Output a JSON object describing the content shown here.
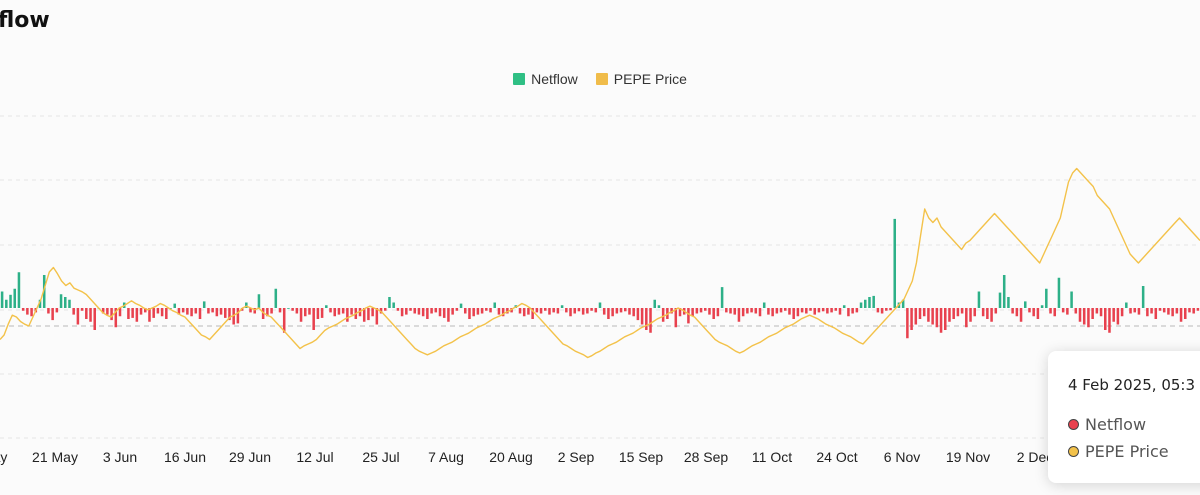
{
  "title": "flow",
  "colors": {
    "netflow_positive": "#2db088",
    "netflow_negative": "#e8414e",
    "price": "#f3c24a"
  },
  "legend": [
    {
      "label": "Netflow",
      "color": "#2fbf84"
    },
    {
      "label": "PEPE Price",
      "color": "#f0bc4a"
    }
  ],
  "tooltip": {
    "date": "4 Feb 2025, 05:3",
    "rows": [
      {
        "label": "Netflow",
        "color": "#e8414e"
      },
      {
        "label": "PEPE Price",
        "color": "#f3c24a"
      }
    ]
  },
  "chart_data": {
    "type": "bar+line",
    "x_tick_labels": [
      "ay",
      "21 May",
      "3 Jun",
      "16 Jun",
      "29 Jun",
      "12 Jul",
      "25 Jul",
      "7 Aug",
      "20 Aug",
      "2 Sep",
      "15 Sep",
      "28 Sep",
      "11 Oct",
      "24 Oct",
      "6 Nov",
      "19 Nov",
      "2 Dec"
    ],
    "grid": "horizontal dashed",
    "legend_position": "top-center",
    "series": [
      {
        "name": "Netflow",
        "type": "bar",
        "values": [
          30,
          15,
          24,
          35,
          65,
          -5,
          -12,
          -15,
          -8,
          15,
          60,
          -10,
          -22,
          -8,
          25,
          20,
          15,
          -12,
          -30,
          -5,
          -20,
          -25,
          -40,
          0,
          -10,
          -12,
          -22,
          -35,
          -15,
          10,
          -20,
          -18,
          -25,
          -12,
          -8,
          -25,
          -18,
          -10,
          -15,
          -20,
          0,
          8,
          -12,
          -8,
          -12,
          -15,
          -10,
          -20,
          12,
          -10,
          -8,
          -15,
          -12,
          -18,
          -22,
          -30,
          -28,
          -5,
          10,
          -8,
          -10,
          25,
          -20,
          -15,
          -10,
          35,
          -8,
          -45,
          0,
          -5,
          -10,
          -25,
          -15,
          -12,
          -40,
          -20,
          -18,
          5,
          -8,
          -15,
          -12,
          -10,
          -25,
          -12,
          -20,
          -15,
          -25,
          -22,
          -15,
          -30,
          -10,
          -5,
          20,
          10,
          -5,
          -15,
          -12,
          -5,
          -10,
          -12,
          -15,
          -20,
          -10,
          -8,
          -15,
          -18,
          -25,
          -12,
          -5,
          8,
          -10,
          -20,
          -15,
          -12,
          -10,
          -5,
          -8,
          10,
          -12,
          -15,
          -10,
          -8,
          5,
          -10,
          -15,
          -12,
          -20,
          -8,
          -10,
          -5,
          -12,
          -8,
          -10,
          5,
          -8,
          -15,
          -10,
          -6,
          -12,
          -10,
          -5,
          -8,
          10,
          -12,
          -20,
          -15,
          -10,
          -8,
          -6,
          -12,
          -15,
          -22,
          -30,
          -40,
          -45,
          15,
          5,
          -25,
          -20,
          -10,
          -35,
          -15,
          -12,
          -28,
          -15,
          -10,
          -8,
          -5,
          -12,
          -20,
          -15,
          38,
          -8,
          -10,
          -12,
          -25,
          -15,
          -10,
          -8,
          -10,
          -15,
          10,
          -12,
          -15,
          -10,
          -8,
          -5,
          -12,
          -20,
          -15,
          -8,
          -10,
          -5,
          -12,
          -8,
          -6,
          -10,
          -8,
          -5,
          -12,
          5,
          -15,
          -10,
          -8,
          10,
          15,
          20,
          22,
          -8,
          -10,
          -5,
          -4,
          162,
          10,
          15,
          -55,
          -40,
          -30,
          -20,
          -15,
          -25,
          -30,
          -35,
          -45,
          -40,
          -25,
          -20,
          -15,
          -10,
          -35,
          -25,
          -15,
          30,
          -15,
          -20,
          -25,
          -10,
          28,
          60,
          20,
          -10,
          -15,
          -25,
          12,
          -8,
          -15,
          -20,
          5,
          35,
          -10,
          -15,
          55,
          -8,
          -12,
          30,
          -10,
          -25,
          -30,
          -35,
          -20,
          -10,
          -15,
          -40,
          -45,
          -25,
          -30,
          -15,
          10,
          -10,
          -8,
          -12,
          40,
          -15,
          -10,
          -20,
          -5,
          -8,
          -12,
          -15,
          -10,
          -25,
          -20,
          -8,
          -10,
          -5
        ],
        "colors": {
          "positive": "#2db088",
          "negative": "#e8414e"
        }
      },
      {
        "name": "PEPE Price",
        "type": "line",
        "values": [
          -35,
          -30,
          -18,
          -8,
          -10,
          -15,
          -18,
          -20,
          -10,
          0,
          10,
          25,
          40,
          45,
          38,
          30,
          25,
          28,
          22,
          20,
          18,
          15,
          10,
          5,
          0,
          -5,
          -8,
          -10,
          -5,
          0,
          2,
          5,
          8,
          5,
          3,
          0,
          -2,
          0,
          2,
          5,
          3,
          0,
          -3,
          -5,
          -8,
          -10,
          -15,
          -20,
          -25,
          -30,
          -32,
          -35,
          -30,
          -25,
          -20,
          -15,
          -10,
          -8,
          -5,
          0,
          2,
          0,
          -2,
          0,
          -5,
          -8,
          -10,
          -15,
          -20,
          -25,
          -30,
          -35,
          -40,
          -45,
          -42,
          -40,
          -38,
          -35,
          -30,
          -25,
          -22,
          -20,
          -18,
          -15,
          -12,
          -10,
          -8,
          -5,
          -3,
          0,
          2,
          0,
          -2,
          -5,
          -10,
          -15,
          -20,
          -25,
          -30,
          -35,
          -40,
          -45,
          -48,
          -50,
          -52,
          -50,
          -48,
          -45,
          -42,
          -40,
          -38,
          -35,
          -32,
          -30,
          -28,
          -25,
          -22,
          -20,
          -18,
          -15,
          -12,
          -10,
          -8,
          -5,
          -3,
          0,
          2,
          5,
          3,
          0,
          -5,
          -10,
          -15,
          -20,
          -25,
          -30,
          -35,
          -40,
          -42,
          -45,
          -48,
          -50,
          -52,
          -55,
          -53,
          -50,
          -48,
          -45,
          -42,
          -40,
          -38,
          -35,
          -32,
          -30,
          -28,
          -25,
          -22,
          -20,
          -18,
          -15,
          -12,
          -10,
          -8,
          -5,
          -3,
          0,
          -2,
          -5,
          -8,
          -10,
          -15,
          -20,
          -25,
          -30,
          -35,
          -38,
          -40,
          -42,
          -45,
          -48,
          -50,
          -48,
          -45,
          -42,
          -40,
          -38,
          -35,
          -32,
          -30,
          -28,
          -25,
          -22,
          -20,
          -18,
          -15,
          -12,
          -10,
          -8,
          -10,
          -12,
          -15,
          -18,
          -20,
          -22,
          -25,
          -28,
          -30,
          -32,
          -35,
          -38,
          -40,
          -35,
          -30,
          -25,
          -20,
          -15,
          -10,
          -5,
          0,
          5,
          10,
          20,
          30,
          50,
          80,
          110,
          100,
          95,
          100,
          90,
          85,
          80,
          75,
          70,
          65,
          72,
          75,
          80,
          85,
          90,
          95,
          100,
          105,
          100,
          95,
          90,
          85,
          80,
          75,
          70,
          65,
          60,
          55,
          50,
          60,
          70,
          80,
          90,
          100,
          120,
          140,
          150,
          155,
          150,
          145,
          140,
          135,
          125,
          120,
          115,
          110,
          100,
          90,
          80,
          70,
          60,
          55,
          50,
          55,
          60,
          65,
          70,
          75,
          80,
          85,
          90,
          95,
          100,
          95,
          90,
          85,
          80,
          75
        ]
      }
    ]
  }
}
